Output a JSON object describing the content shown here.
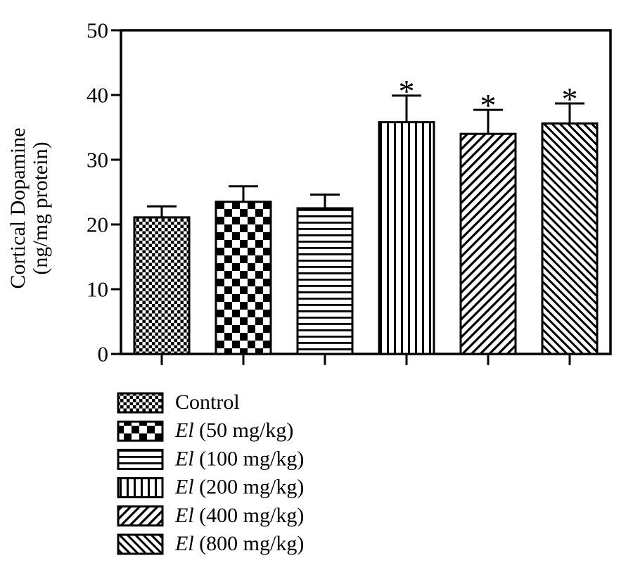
{
  "figure": {
    "background": "#ffffff",
    "ink": "#000000",
    "kind": "grouped pattern bar chart with SEM error bars"
  },
  "chart_data": {
    "type": "bar",
    "title": "",
    "ylabel_line1": "Cortical Dopamine",
    "ylabel_line2": "(ng/mg protein)",
    "xlabel": "",
    "ylim": [
      0,
      50
    ],
    "yticks": [
      0,
      10,
      20,
      30,
      40,
      50
    ],
    "grid": false,
    "legend_position": "bottom-left",
    "categories": [
      "Control",
      "El (50 mg/kg)",
      "El (100 mg/kg)",
      "El (200 mg/kg)",
      "El (400 mg/kg)",
      "El (800 mg/kg)"
    ],
    "values": [
      21.1,
      23.5,
      22.5,
      35.8,
      34.0,
      35.6
    ],
    "sem_upper": [
      1.7,
      2.4,
      2.1,
      4.1,
      3.7,
      3.1
    ],
    "error_top": [
      22.8,
      25.9,
      24.6,
      39.9,
      37.7,
      38.7
    ],
    "significance": [
      "",
      "",
      "",
      "*",
      "*",
      "*"
    ],
    "patterns": [
      "checker-fine",
      "checker-coarse",
      "horizontal-lines",
      "vertical-lines",
      "diagonal-forward",
      "diagonal-back"
    ]
  },
  "legend": {
    "items": [
      {
        "pattern": "checker-fine",
        "label_em": "",
        "label_rest": "Control",
        "full_label": "Control"
      },
      {
        "pattern": "checker-coarse",
        "label_em": "El",
        "label_rest": " (50 mg/kg)",
        "full_label": "El (50 mg/kg)"
      },
      {
        "pattern": "horizontal-lines",
        "label_em": "El",
        "label_rest": " (100 mg/kg)",
        "full_label": "El (100 mg/kg)"
      },
      {
        "pattern": "vertical-lines",
        "label_em": "El",
        "label_rest": " (200 mg/kg)",
        "full_label": "El (200 mg/kg)"
      },
      {
        "pattern": "diagonal-forward",
        "label_em": "El",
        "label_rest": " (400 mg/kg)",
        "full_label": "El (400 mg/kg)"
      },
      {
        "pattern": "diagonal-back",
        "label_em": "El",
        "label_rest": " (800 mg/kg)",
        "full_label": "El (800 mg/kg)"
      }
    ]
  }
}
